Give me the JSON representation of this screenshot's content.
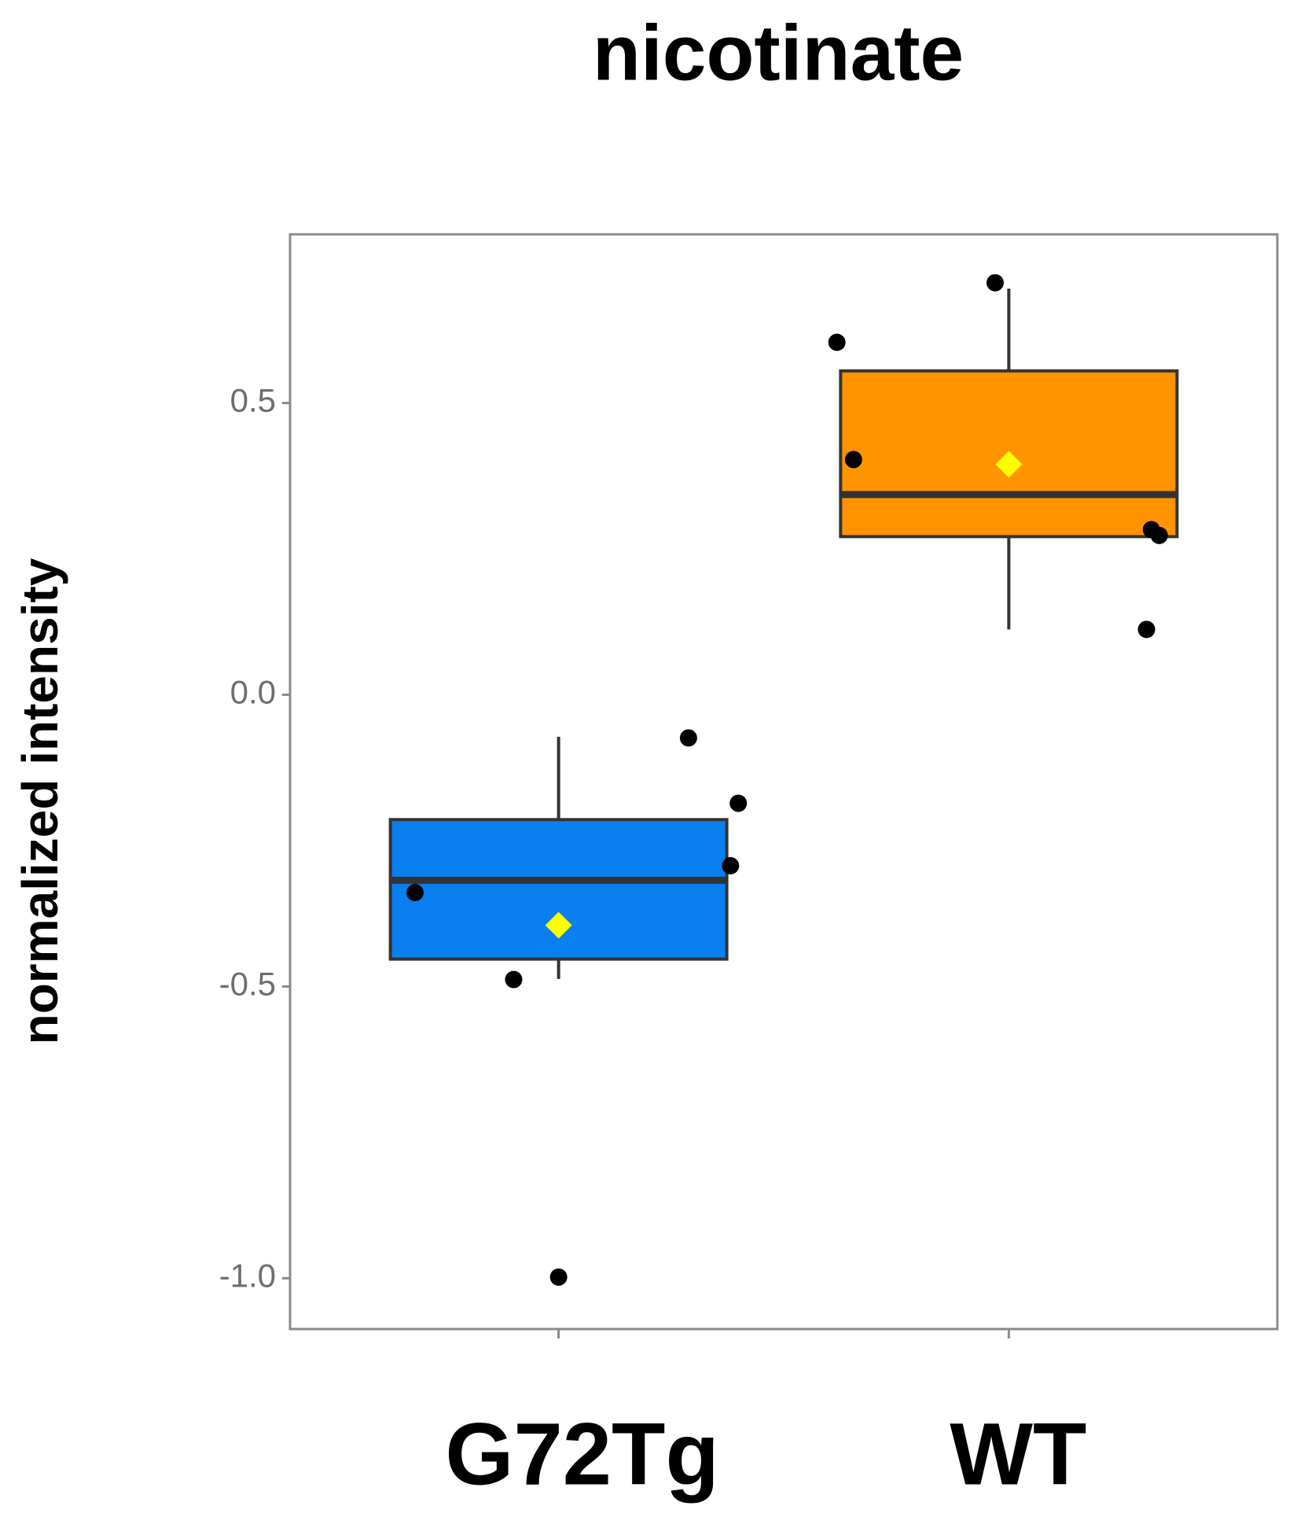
{
  "chart_data": {
    "type": "box",
    "title": "nicotinate",
    "y_label": "normalized intensity",
    "categories": [
      "G72Tg",
      "WT"
    ],
    "series": [
      {
        "color": "#0a7ff0",
        "q1": -0.453,
        "median": -0.318,
        "q3": -0.214,
        "whisker_low": -0.487,
        "whisker_high": -0.072,
        "mean": -0.395,
        "points": [
          -0.339,
          -0.488,
          -0.998,
          -0.074,
          -0.186,
          -0.293
        ]
      },
      {
        "color": "#ff9400",
        "q1": 0.271,
        "median": 0.343,
        "q3": 0.555,
        "whisker_low": 0.112,
        "whisker_high": 0.696,
        "mean": 0.395,
        "points": [
          0.706,
          0.604,
          0.403,
          0.283,
          0.273,
          0.112
        ]
      }
    ],
    "mean_color": "#ffff00",
    "point_color": "#000000",
    "ylim": [
      -1.087,
      0.789
    ],
    "yticks": [
      {
        "value": -1,
        "label": "-1.0"
      },
      -0.5,
      {
        "value": 0,
        "label": "0.0"
      },
      0.5
    ]
  }
}
